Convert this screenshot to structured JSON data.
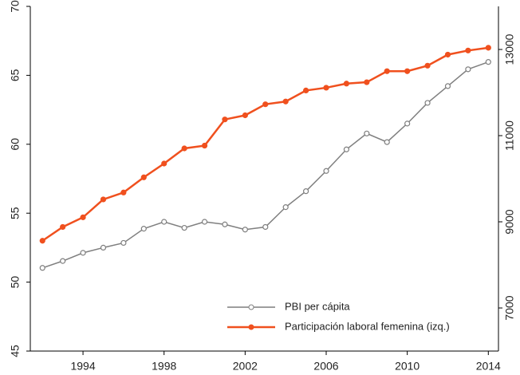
{
  "chart_data": {
    "type": "line",
    "x": [
      1992,
      1993,
      1994,
      1995,
      1996,
      1997,
      1998,
      1999,
      2000,
      2001,
      2002,
      2003,
      2004,
      2005,
      2006,
      2007,
      2008,
      2009,
      2010,
      2011,
      2012,
      2013,
      2014
    ],
    "xlim": [
      1991.4,
      2014.5
    ],
    "xticks": [
      1994,
      1998,
      2002,
      2006,
      2010,
      2014
    ],
    "ylim": [
      45,
      70
    ],
    "yticks": [
      45,
      50,
      55,
      60,
      65,
      70
    ],
    "y2lim": [
      6000,
      14000
    ],
    "y2ticks": [
      7000,
      9000,
      11000,
      13000
    ],
    "legend": "lower right",
    "series": [
      {
        "name": "PBI per cápita",
        "color": "#7f7f7f",
        "axis": "y2",
        "marker": "open",
        "values": [
          7930,
          8090,
          8280,
          8400,
          8510,
          8840,
          9000,
          8860,
          9000,
          8940,
          8820,
          8880,
          9340,
          9710,
          10180,
          10680,
          11050,
          10850,
          11280,
          11760,
          12150,
          12540,
          12710
        ]
      },
      {
        "name": "Participación laboral femenina (izq.)",
        "color": "#f0501e",
        "axis": "y",
        "marker": "filled",
        "values": [
          53.0,
          54.0,
          54.7,
          56.0,
          56.5,
          57.6,
          58.6,
          59.7,
          59.9,
          61.8,
          62.1,
          62.9,
          63.1,
          63.9,
          64.1,
          64.4,
          64.5,
          65.3,
          65.3,
          65.7,
          66.5,
          66.8,
          67.0
        ]
      }
    ]
  }
}
